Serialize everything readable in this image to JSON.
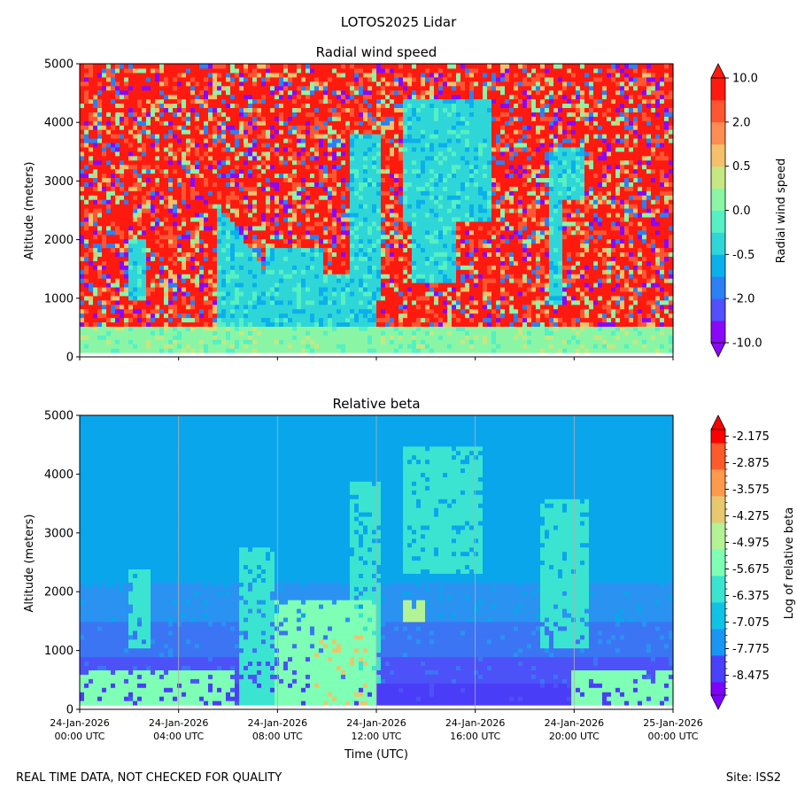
{
  "figure": {
    "suptitle": "LOTOS2025 Lidar",
    "footer_left": "REAL TIME DATA, NOT CHECKED FOR QUALITY",
    "footer_right": "Site: ISS2"
  },
  "colors": {
    "rainbow": [
      "#8000ff",
      "#4a41fc",
      "#1996f3",
      "#0fc3e6",
      "#3ae4d1",
      "#7ffeb5",
      "#b3f395",
      "#e6c96e",
      "#ff9a4d",
      "#ff5a2b",
      "#ff0000"
    ],
    "wind_levels": [
      "#8a08fa",
      "#5250fb",
      "#2b80f6",
      "#0ab0ec",
      "#2fd6d8",
      "#55f0c3",
      "#8af6a5",
      "#c5e882",
      "#f4c06b",
      "#ff8c52",
      "#ff5632",
      "#ff1a10"
    ],
    "sky_beta": "#0aa6ec",
    "gridline": "#b0b0b0"
  },
  "chart_data": [
    {
      "type": "heatmap",
      "title": "Radial wind speed",
      "xlabel": "",
      "ylabel": "Altitude (meters)",
      "ylim": [
        0,
        5000
      ],
      "y_ticks": [
        "0",
        "1000",
        "2000",
        "3000",
        "4000",
        "5000"
      ],
      "y_tick_values": [
        0,
        1000,
        2000,
        3000,
        4000,
        5000
      ],
      "x_range_hours": [
        0,
        24
      ],
      "grid": false,
      "colorbar": {
        "label": "Radial wind speed",
        "range": [
          -10.0,
          10.0
        ],
        "tick_labels": [
          "10.0",
          "2.0",
          "0.5",
          "0.0",
          "-0.5",
          "-2.0",
          "-10.0"
        ],
        "extend": "both"
      }
    },
    {
      "type": "heatmap",
      "title": "Relative beta",
      "xlabel": "Time (UTC)",
      "ylabel": "Altitude (meters)",
      "ylim": [
        0,
        5000
      ],
      "y_ticks": [
        "0",
        "1000",
        "2000",
        "3000",
        "4000",
        "5000"
      ],
      "y_tick_values": [
        0,
        1000,
        2000,
        3000,
        4000,
        5000
      ],
      "x_range_hours": [
        0,
        24
      ],
      "x_ticks_hours": [
        0,
        4,
        8,
        12,
        16,
        20,
        24
      ],
      "x_tick_labels": [
        [
          "24-Jan-2026",
          "00:00 UTC"
        ],
        [
          "24-Jan-2026",
          "04:00 UTC"
        ],
        [
          "24-Jan-2026",
          "08:00 UTC"
        ],
        [
          "24-Jan-2026",
          "12:00 UTC"
        ],
        [
          "24-Jan-2026",
          "16:00 UTC"
        ],
        [
          "24-Jan-2026",
          "20:00 UTC"
        ],
        [
          "25-Jan-2026",
          "00:00 UTC"
        ]
      ],
      "grid": true,
      "colorbar": {
        "label": "Log of relative beta",
        "range": [
          -9.0,
          -2.0
        ],
        "tick_labels": [
          "-2.175",
          "-2.875",
          "-3.575",
          "-4.275",
          "-4.975",
          "-5.675",
          "-6.375",
          "-7.075",
          "-7.775",
          "-8.475"
        ],
        "tick_values": [
          -2.175,
          -2.875,
          -3.575,
          -4.275,
          -4.975,
          -5.675,
          -6.375,
          -7.075,
          -7.775,
          -8.475
        ],
        "extend": "both"
      }
    }
  ]
}
